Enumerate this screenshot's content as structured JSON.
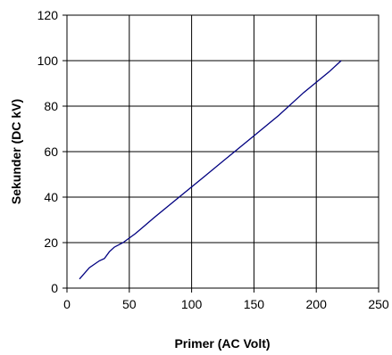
{
  "chart_data": {
    "type": "line",
    "xlabel": "Primer (AC Volt)",
    "ylabel": "Sekunder (DC kV)",
    "xlim": [
      0,
      250
    ],
    "ylim": [
      0,
      120
    ],
    "x_ticks": [
      0,
      50,
      100,
      150,
      200,
      250
    ],
    "y_ticks": [
      0,
      20,
      40,
      60,
      80,
      100,
      120
    ],
    "grid": true,
    "series": [
      {
        "color": "#000080",
        "x": [
          10,
          18,
          26,
          30,
          34,
          38,
          45,
          55,
          70,
          90,
          110,
          130,
          150,
          170,
          190,
          210,
          220
        ],
        "y": [
          4,
          9,
          12,
          13,
          16,
          18,
          20,
          24,
          31,
          40,
          49,
          58,
          67,
          76,
          86,
          95,
          100
        ]
      }
    ]
  }
}
